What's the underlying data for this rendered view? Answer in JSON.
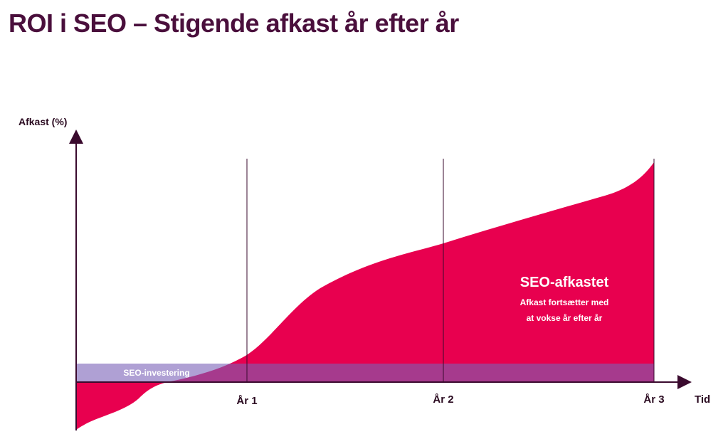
{
  "title": "ROI i SEO – Stigende afkast år efter år",
  "chart_data": {
    "type": "area",
    "ylabel": "Afkast (%)",
    "xlabel": "Tid",
    "x_ticks": [
      "År 1",
      "År 2",
      "År 3"
    ],
    "investment_label": "SEO-investering",
    "return_label": "SEO-afkastet",
    "return_annotation_line1": "Afkast fortsætter med",
    "return_annotation_line2": "at vokse år efter år",
    "colors": {
      "return": "#e8004f",
      "investment": "#9b7fc6",
      "axis": "#3a0a2e",
      "title": "#4a0f3c"
    }
  }
}
